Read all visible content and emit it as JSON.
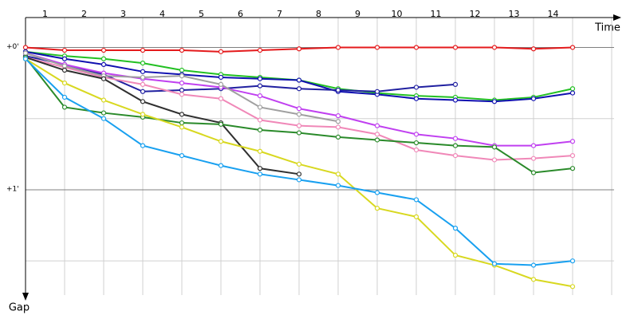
{
  "chart_data": {
    "type": "line",
    "x_label": "Time",
    "y_label": "Gap",
    "categories": [
      "1",
      "2",
      "3",
      "4",
      "5",
      "6",
      "7",
      "8",
      "9",
      "10",
      "11",
      "12",
      "13",
      "14"
    ],
    "x": [
      0,
      1,
      2,
      3,
      4,
      5,
      6,
      7,
      8,
      9,
      10,
      11,
      12,
      13,
      14
    ],
    "xlim": [
      0,
      15
    ],
    "ylim": [
      -0.21,
      1.74
    ],
    "yticks": [
      {
        "value": 0,
        "label": "+0'"
      },
      {
        "value": 1,
        "label": "+1'"
      }
    ],
    "minor_yticks": [
      0.5,
      1.5
    ],
    "grid": true,
    "series": [
      {
        "color": "#e41a1c",
        "values": [
          0,
          0.02,
          0.02,
          0.02,
          0.02,
          0.03,
          0.02,
          0.01,
          0,
          0,
          0,
          0,
          0,
          0.01,
          0
        ]
      },
      {
        "color": "#22c022",
        "values": [
          0.03,
          0.06,
          0.08,
          0.11,
          0.16,
          0.19,
          0.21,
          0.23,
          0.29,
          0.32,
          0.34,
          0.35,
          0.37,
          0.35,
          0.29
        ]
      },
      {
        "color": "#1010b0",
        "values": [
          0.03,
          0.08,
          0.12,
          0.17,
          0.19,
          0.21,
          0.22,
          0.23,
          0.31,
          0.33,
          0.36,
          0.37,
          0.38,
          0.36,
          0.32
        ]
      },
      {
        "color": "#2020a0",
        "values": [
          0.06,
          0.12,
          0.19,
          0.31,
          0.3,
          0.29,
          0.27,
          0.29,
          0.3,
          0.31,
          0.28,
          0.26,
          null,
          null,
          null
        ]
      },
      {
        "color": "#c040f0",
        "values": [
          0.04,
          0.12,
          0.18,
          0.22,
          0.25,
          0.28,
          0.34,
          0.43,
          0.48,
          0.55,
          0.61,
          0.64,
          0.69,
          0.69,
          0.66
        ]
      },
      {
        "color": "#f088b8",
        "values": [
          0.07,
          0.14,
          0.21,
          0.26,
          0.33,
          0.36,
          0.51,
          0.55,
          0.56,
          0.61,
          0.72,
          0.76,
          0.79,
          0.78,
          0.76
        ]
      },
      {
        "color": "#a0a0a0",
        "values": [
          0.04,
          0.13,
          0.2,
          0.21,
          0.2,
          0.26,
          0.42,
          0.47,
          0.52,
          null,
          null,
          null,
          null,
          null,
          null
        ]
      },
      {
        "color": "#303030",
        "values": [
          0.07,
          0.16,
          0.22,
          0.38,
          0.47,
          0.53,
          0.85,
          0.89,
          null,
          null,
          null,
          null,
          null,
          null,
          null
        ]
      },
      {
        "color": "#2a8a2a",
        "values": [
          0.07,
          0.42,
          0.46,
          0.49,
          0.53,
          0.54,
          0.58,
          0.6,
          0.63,
          0.65,
          0.67,
          0.69,
          0.7,
          0.88,
          0.85
        ]
      },
      {
        "color": "#d8d820",
        "values": [
          0.08,
          0.25,
          0.37,
          0.47,
          0.56,
          0.66,
          0.73,
          0.82,
          0.89,
          1.13,
          1.19,
          1.46,
          1.53,
          1.63,
          1.68
        ]
      },
      {
        "color": "#18a0f0",
        "values": [
          0.08,
          0.35,
          0.5,
          0.69,
          0.76,
          0.83,
          0.89,
          0.93,
          0.97,
          1.02,
          1.07,
          1.27,
          1.52,
          1.53,
          1.5
        ]
      }
    ]
  }
}
